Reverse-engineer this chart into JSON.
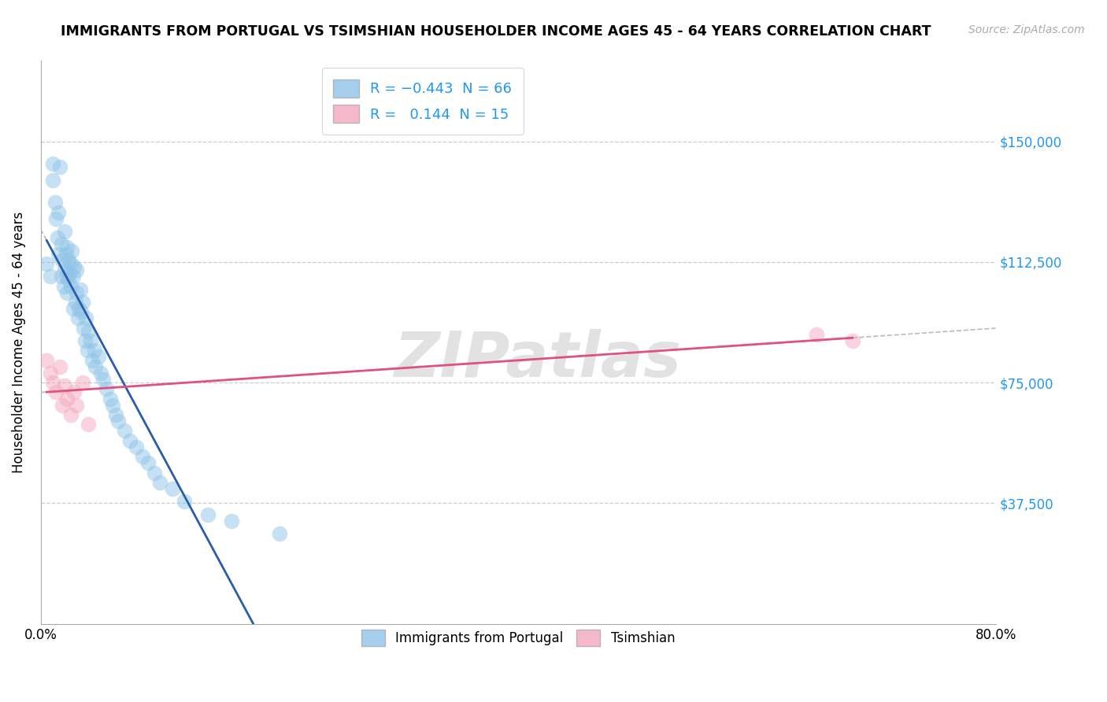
{
  "title": "IMMIGRANTS FROM PORTUGAL VS TSIMSHIAN HOUSEHOLDER INCOME AGES 45 - 64 YEARS CORRELATION CHART",
  "source": "Source: ZipAtlas.com",
  "ylabel": "Householder Income Ages 45 - 64 years",
  "xlim": [
    0.0,
    0.8
  ],
  "ylim": [
    0,
    175000
  ],
  "yticks": [
    0,
    37500,
    75000,
    112500,
    150000
  ],
  "ytick_labels": [
    "",
    "$37,500",
    "$75,000",
    "$112,500",
    "$150,000"
  ],
  "xticks": [
    0.0,
    0.8
  ],
  "xtick_labels": [
    "0.0%",
    "80.0%"
  ],
  "blue_color": "#8fc4e8",
  "pink_color": "#f4a8be",
  "line_blue": "#2a5caa",
  "line_pink": "#e05080",
  "watermark": "ZIPatlas",
  "blue_scatter_x": [
    0.005,
    0.008,
    0.01,
    0.01,
    0.012,
    0.013,
    0.014,
    0.015,
    0.015,
    0.016,
    0.017,
    0.017,
    0.018,
    0.019,
    0.02,
    0.02,
    0.021,
    0.021,
    0.022,
    0.022,
    0.023,
    0.023,
    0.024,
    0.025,
    0.025,
    0.026,
    0.027,
    0.027,
    0.028,
    0.029,
    0.03,
    0.03,
    0.031,
    0.032,
    0.033,
    0.034,
    0.035,
    0.036,
    0.037,
    0.038,
    0.039,
    0.04,
    0.042,
    0.043,
    0.045,
    0.046,
    0.048,
    0.05,
    0.052,
    0.055,
    0.058,
    0.06,
    0.063,
    0.065,
    0.07,
    0.075,
    0.08,
    0.085,
    0.09,
    0.095,
    0.1,
    0.11,
    0.12,
    0.14,
    0.16,
    0.2
  ],
  "blue_scatter_y": [
    112000,
    108000,
    143000,
    138000,
    131000,
    126000,
    120000,
    128000,
    115000,
    142000,
    118000,
    108000,
    113000,
    105000,
    122000,
    110000,
    115000,
    108000,
    117000,
    103000,
    113000,
    107000,
    109000,
    112000,
    105000,
    116000,
    108000,
    98000,
    111000,
    100000,
    110000,
    103000,
    95000,
    98000,
    104000,
    97000,
    100000,
    92000,
    88000,
    95000,
    85000,
    91000,
    88000,
    82000,
    85000,
    80000,
    83000,
    78000,
    76000,
    73000,
    70000,
    68000,
    65000,
    63000,
    60000,
    57000,
    55000,
    52000,
    50000,
    47000,
    44000,
    42000,
    38000,
    34000,
    32000,
    28000
  ],
  "pink_scatter_x": [
    0.005,
    0.008,
    0.01,
    0.013,
    0.016,
    0.018,
    0.02,
    0.022,
    0.025,
    0.028,
    0.03,
    0.035,
    0.04,
    0.65,
    0.68
  ],
  "pink_scatter_y": [
    82000,
    78000,
    75000,
    72000,
    80000,
    68000,
    74000,
    70000,
    65000,
    72000,
    68000,
    75000,
    62000,
    90000,
    88000
  ]
}
